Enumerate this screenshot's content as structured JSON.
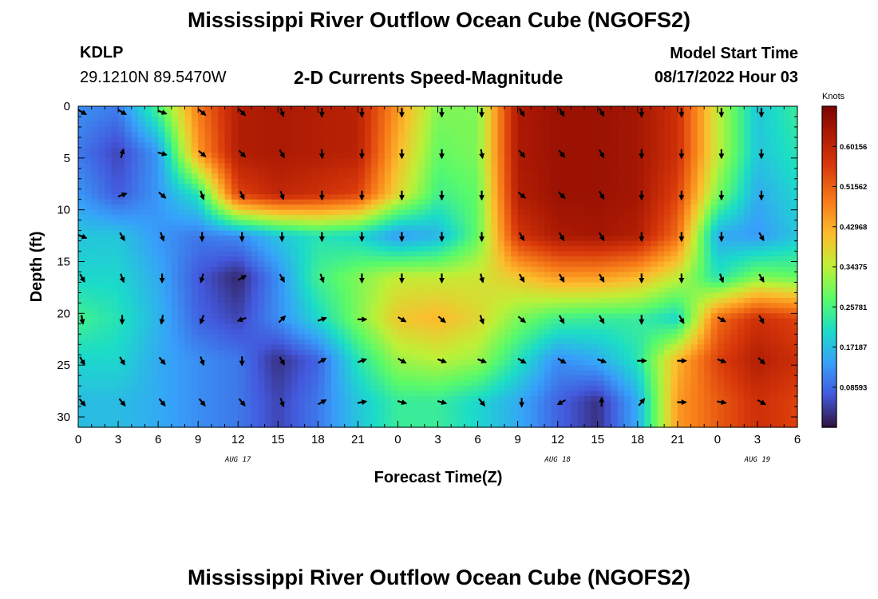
{
  "page": {
    "title": "Mississippi River Outflow Ocean Cube (NGOFS2)",
    "bottom_title": "Mississippi River Outflow Ocean Cube (NGOFS2)",
    "station": "KDLP",
    "coords": "29.1210N  89.5470W",
    "subtitle": "2-D Currents Speed-Magnitude",
    "model_start_label": "Model Start Time",
    "model_start_value": "08/17/2022 Hour 03"
  },
  "chart_data": {
    "type": "heatmap",
    "title": "2-D Currents Speed-Magnitude",
    "xlabel": "Forecast Time(Z)",
    "ylabel": "Depth (ft)",
    "colorbar_title": "Knots",
    "x_range_hours": [
      0,
      54
    ],
    "y_range": [
      0,
      31
    ],
    "y_inverted": true,
    "x_ticks": [
      {
        "h": 0,
        "label": "0"
      },
      {
        "h": 3,
        "label": "3"
      },
      {
        "h": 6,
        "label": "6"
      },
      {
        "h": 9,
        "label": "9"
      },
      {
        "h": 12,
        "label": "12"
      },
      {
        "h": 15,
        "label": "15"
      },
      {
        "h": 18,
        "label": "18"
      },
      {
        "h": 21,
        "label": "21"
      },
      {
        "h": 24,
        "label": "0"
      },
      {
        "h": 27,
        "label": "3"
      },
      {
        "h": 30,
        "label": "6"
      },
      {
        "h": 33,
        "label": "9"
      },
      {
        "h": 36,
        "label": "12"
      },
      {
        "h": 39,
        "label": "15"
      },
      {
        "h": 42,
        "label": "18"
      },
      {
        "h": 45,
        "label": "21"
      },
      {
        "h": 48,
        "label": "0"
      },
      {
        "h": 51,
        "label": "3"
      },
      {
        "h": 54,
        "label": "6"
      }
    ],
    "date_labels": [
      {
        "h": 12,
        "label": "AUG 17"
      },
      {
        "h": 36,
        "label": "AUG 18"
      },
      {
        "h": 51,
        "label": "AUG 19"
      }
    ],
    "y_ticks": [
      0,
      5,
      10,
      15,
      20,
      25,
      30
    ],
    "colorbar_labels": [
      "0.60156",
      "0.51562",
      "0.42968",
      "0.34375",
      "0.25781",
      "0.17187",
      "0.08593"
    ],
    "colorbar_range": [
      0,
      0.6875
    ],
    "depths": [
      0.5,
      4.5,
      8.5,
      12.5,
      16.5,
      20.5,
      24.5,
      28.5
    ],
    "speed_hours": [
      0,
      3,
      6,
      9,
      12,
      15,
      18,
      21,
      24,
      27,
      30,
      33,
      36,
      39,
      42,
      45,
      48,
      51,
      54
    ],
    "speed": [
      [
        0.12,
        0.1,
        0.25,
        0.48,
        0.62,
        0.63,
        0.62,
        0.61,
        0.45,
        0.3,
        0.3,
        0.63,
        0.65,
        0.65,
        0.64,
        0.58,
        0.35,
        0.18,
        0.24
      ],
      [
        0.1,
        0.05,
        0.13,
        0.45,
        0.62,
        0.63,
        0.62,
        0.61,
        0.42,
        0.28,
        0.3,
        0.63,
        0.65,
        0.65,
        0.64,
        0.58,
        0.35,
        0.18,
        0.22
      ],
      [
        0.13,
        0.07,
        0.13,
        0.22,
        0.55,
        0.6,
        0.58,
        0.55,
        0.38,
        0.25,
        0.28,
        0.62,
        0.65,
        0.65,
        0.64,
        0.55,
        0.3,
        0.15,
        0.2
      ],
      [
        0.18,
        0.18,
        0.13,
        0.1,
        0.12,
        0.18,
        0.22,
        0.2,
        0.13,
        0.16,
        0.28,
        0.57,
        0.63,
        0.64,
        0.62,
        0.5,
        0.15,
        0.13,
        0.18
      ],
      [
        0.2,
        0.2,
        0.15,
        0.07,
        0.02,
        0.12,
        0.25,
        0.3,
        0.35,
        0.35,
        0.36,
        0.4,
        0.45,
        0.45,
        0.42,
        0.35,
        0.22,
        0.3,
        0.28
      ],
      [
        0.25,
        0.22,
        0.16,
        0.08,
        0.05,
        0.12,
        0.2,
        0.3,
        0.4,
        0.42,
        0.38,
        0.3,
        0.25,
        0.24,
        0.24,
        0.2,
        0.5,
        0.58,
        0.55
      ],
      [
        0.2,
        0.2,
        0.15,
        0.12,
        0.1,
        0.03,
        0.08,
        0.22,
        0.32,
        0.34,
        0.32,
        0.22,
        0.12,
        0.15,
        0.22,
        0.42,
        0.55,
        0.62,
        0.58
      ],
      [
        0.17,
        0.17,
        0.15,
        0.12,
        0.1,
        0.05,
        0.1,
        0.18,
        0.24,
        0.24,
        0.2,
        0.15,
        0.08,
        0.03,
        0.15,
        0.45,
        0.52,
        0.58,
        0.55
      ]
    ],
    "arrow_hours": [
      0,
      3,
      6,
      9,
      12,
      15,
      18,
      21,
      24,
      27,
      30,
      33,
      36,
      39,
      42,
      45,
      48,
      51
    ],
    "arrow_directions_deg_from_north": [
      [
        120,
        120,
        110,
        130,
        135,
        160,
        180,
        180,
        180,
        180,
        180,
        150,
        150,
        150,
        180,
        180,
        180,
        180
      ],
      [
        null,
        15,
        105,
        130,
        135,
        150,
        175,
        180,
        180,
        180,
        170,
        140,
        140,
        150,
        180,
        180,
        180,
        180
      ],
      [
        null,
        70,
        130,
        160,
        155,
        160,
        180,
        180,
        180,
        180,
        180,
        130,
        135,
        150,
        180,
        180,
        180,
        180
      ],
      [
        110,
        150,
        160,
        180,
        180,
        180,
        180,
        180,
        180,
        180,
        180,
        150,
        150,
        150,
        180,
        180,
        180,
        150
      ],
      [
        150,
        160,
        180,
        195,
        60,
        150,
        160,
        180,
        180,
        180,
        165,
        150,
        150,
        150,
        180,
        180,
        160,
        150
      ],
      [
        170,
        180,
        190,
        200,
        250,
        45,
        70,
        90,
        120,
        130,
        160,
        130,
        150,
        150,
        180,
        150,
        120,
        150
      ],
      [
        150,
        150,
        140,
        160,
        180,
        150,
        60,
        70,
        120,
        110,
        110,
        120,
        120,
        110,
        90,
        90,
        110,
        135
      ],
      [
        140,
        140,
        140,
        140,
        140,
        160,
        60,
        80,
        105,
        105,
        140,
        180,
        240,
        0,
        40,
        90,
        100,
        120
      ]
    ]
  }
}
